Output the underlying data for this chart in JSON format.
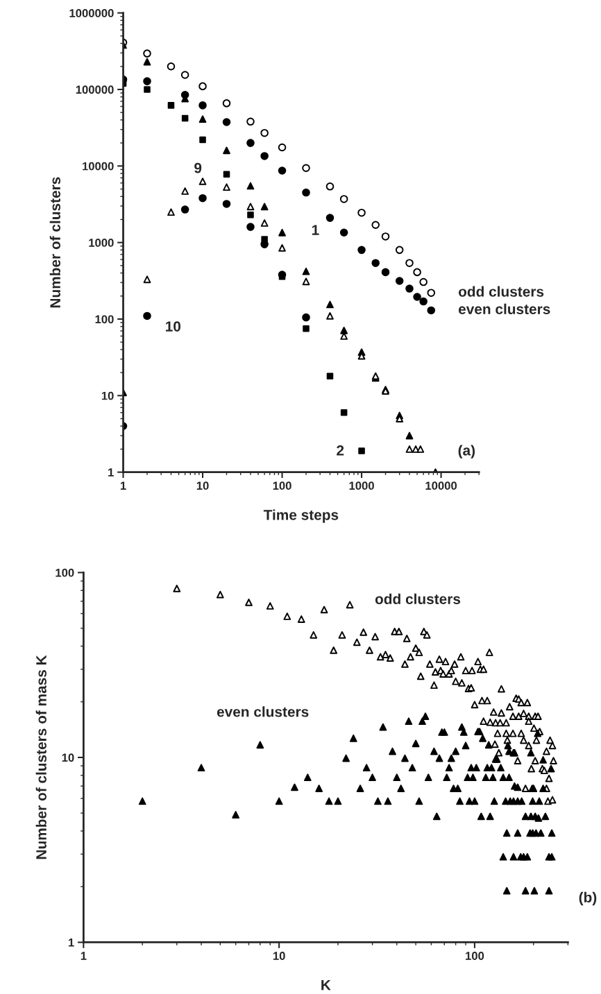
{
  "chart_data": [
    {
      "type": "scatter",
      "xlabel": "Time steps",
      "ylabel": "Number of clusters",
      "log": "xy",
      "xlim": [
        1,
        30000
      ],
      "ylim": [
        1,
        1000000
      ],
      "xticks": [
        1,
        10,
        100,
        1000,
        10000
      ],
      "yticks": [
        1,
        10,
        100,
        1000,
        10000,
        100000,
        1000000
      ],
      "grid": false,
      "legend": false,
      "annotations": [
        "(a)",
        "9",
        "10",
        "1",
        "2"
      ],
      "series": [
        {
          "name": "odd clusters",
          "color": "#ffffff",
          "marker": "circle",
          "x": [
            1,
            2,
            4,
            6,
            10,
            20,
            40,
            60,
            100,
            200,
            400,
            600,
            1000,
            1500,
            2000,
            3000,
            4000,
            5000,
            6000,
            7500
          ],
          "values": [
            410000,
            295000,
            200000,
            155000,
            110000,
            66000,
            38000,
            27000,
            17500,
            9400,
            5400,
            3700,
            2450,
            1700,
            1200,
            800,
            540,
            410,
            305,
            220
          ]
        },
        {
          "name": "even clusters",
          "color": "#000000",
          "marker": "circle",
          "x": [
            1,
            2,
            6,
            10,
            20,
            40,
            60,
            100,
            200,
            400,
            600,
            1000,
            1500,
            2000,
            3000,
            4000,
            5000,
            6000,
            7500
          ],
          "values": [
            135000,
            128000,
            85000,
            62000,
            37500,
            20000,
            13500,
            8700,
            4500,
            2100,
            1350,
            800,
            540,
            410,
            315,
            250,
            195,
            170,
            130
          ]
        },
        {
          "color": "#000000",
          "marker": "circle",
          "x": [
            1,
            2,
            6,
            10,
            20,
            40,
            60,
            100,
            200
          ],
          "values": [
            4,
            110,
            2700,
            3800,
            3200,
            1600,
            950,
            380,
            105
          ]
        },
        {
          "color": "#000000",
          "marker": "square",
          "x": [
            1,
            2,
            4,
            6,
            10,
            20,
            40,
            60,
            100,
            200,
            400,
            600,
            1000
          ],
          "values": [
            120000,
            100000,
            62000,
            42000,
            22000,
            7800,
            2300,
            1100,
            360,
            75,
            18,
            6,
            1.9
          ]
        },
        {
          "color": "#000000",
          "marker": "triangle",
          "x": [
            1,
            1,
            2,
            6,
            10,
            20,
            40,
            60,
            100,
            200,
            400,
            600,
            1000,
            1500,
            2000,
            3000,
            4000,
            8500
          ],
          "values": [
            380000,
            11,
            230000,
            76000,
            41000,
            16000,
            5500,
            2950,
            1350,
            420,
            155,
            71,
            37,
            17,
            12,
            5.5,
            3,
            1
          ]
        },
        {
          "color": "#ffffff",
          "marker": "triangle",
          "x": [
            2,
            4,
            6,
            10,
            20,
            40,
            60,
            100,
            200,
            400,
            600,
            1000,
            1500,
            2000,
            3000,
            4000,
            4800,
            5500
          ],
          "values": [
            330,
            2500,
            4700,
            6300,
            5300,
            2950,
            1800,
            850,
            310,
            110,
            60,
            33,
            18,
            11.5,
            5,
            2,
            2,
            2
          ]
        }
      ]
    },
    {
      "type": "scatter",
      "xlabel": "K",
      "ylabel": "Number of clusters of mass K",
      "log": "xy",
      "xlim": [
        1,
        300
      ],
      "ylim": [
        1,
        100
      ],
      "xticks": [
        1,
        10,
        100
      ],
      "yticks": [
        1,
        10,
        100
      ],
      "grid": false,
      "legend": false,
      "annotations": [
        "(b)"
      ],
      "series": [
        {
          "name": "odd clusters",
          "color": "#ffffff",
          "marker": "triangle",
          "x": [
            3,
            5,
            7,
            9,
            11,
            13,
            15,
            17,
            19,
            21,
            23,
            25,
            27,
            29,
            31,
            33,
            35,
            37,
            39,
            41,
            44,
            45,
            47,
            50,
            52,
            53,
            55,
            57,
            59,
            62,
            63,
            66,
            67,
            69,
            71,
            74,
            76,
            79,
            80,
            85,
            86,
            90,
            93,
            96,
            97,
            100,
            104,
            107,
            109,
            111,
            111,
            116,
            119,
            120,
            125,
            127,
            128,
            131,
            133,
            135,
            137,
            137,
            145,
            145,
            147,
            151,
            157,
            157,
            160,
            163,
            166,
            168,
            168,
            173,
            173,
            178,
            178,
            182,
            186,
            189,
            189,
            189,
            195,
            197,
            201,
            204,
            204,
            207,
            211,
            215,
            222,
            227,
            233,
            233,
            237,
            240,
            243,
            250,
            250,
            253
          ],
          "values": [
            82,
            76,
            69,
            66,
            58,
            56,
            46,
            63,
            38,
            46,
            67,
            42,
            47.6,
            38,
            45,
            35,
            36,
            34.5,
            48,
            48,
            32,
            44,
            35,
            39,
            37,
            27.5,
            48,
            46,
            32,
            24.6,
            29,
            34,
            29.5,
            28.3,
            33,
            28.3,
            29.5,
            32,
            25.8,
            35,
            25.3,
            29.5,
            23.6,
            23.8,
            29.5,
            19.3,
            33,
            30,
            20.3,
            30,
            15.7,
            20.3,
            37,
            15.5,
            17.6,
            11.8,
            15.4,
            13.5,
            10.6,
            15.4,
            23.5,
            17.4,
            15.4,
            13.5,
            12.4,
            18.8,
            16.7,
            13.5,
            10.6,
            20.9,
            9.6,
            20.7,
            16.7,
            19.8,
            13.5,
            12.4,
            17.3,
            6.8,
            19.8,
            16.7,
            15.7,
            11.6,
            8.7,
            6.8,
            14.4,
            16.7,
            9.6,
            12.4,
            16.7,
            13.8,
            8.7,
            8.5,
            10.8,
            6.8,
            5.8,
            7.7,
            12.4,
            11.6,
            5.9,
            9.6
          ]
        },
        {
          "name": "even clusters",
          "color": "#000000",
          "marker": "triangle",
          "x": [
            2,
            4,
            6,
            8,
            10,
            12,
            14,
            16,
            18,
            20,
            22,
            24,
            26,
            28,
            30,
            32,
            34,
            36,
            38,
            40,
            42,
            44,
            46,
            48,
            50,
            52,
            54,
            56,
            58,
            62,
            64,
            66,
            68,
            70,
            72,
            74,
            76,
            78,
            80,
            82,
            84,
            86,
            88,
            90,
            92,
            94,
            96,
            98,
            100,
            102,
            104,
            106,
            108,
            110,
            114,
            116,
            118,
            120,
            122,
            124,
            126,
            128,
            130,
            136,
            140,
            140,
            144,
            146,
            146,
            148,
            150,
            150,
            152,
            158,
            158,
            158,
            160,
            166,
            166,
            166,
            172,
            174,
            178,
            182,
            182,
            186,
            192,
            194,
            194,
            198,
            198,
            200,
            202,
            204,
            206,
            210,
            212,
            214,
            218,
            224,
            224,
            230,
            240,
            240,
            246,
            248,
            248
          ],
          "values": [
            5.8,
            8.8,
            4.9,
            11.7,
            5.8,
            6.9,
            7.8,
            6.8,
            5.8,
            5.8,
            9.9,
            12.7,
            6.8,
            8.8,
            7.8,
            5.8,
            14.6,
            5.8,
            10.8,
            7.8,
            6.8,
            9.9,
            15.7,
            8.8,
            11.9,
            5.8,
            15.7,
            16.7,
            7.8,
            10.8,
            4.8,
            9.9,
            13.7,
            13.7,
            7.8,
            8.8,
            9.9,
            6.8,
            10.8,
            6.8,
            5.8,
            14.6,
            13.7,
            11.6,
            7.8,
            5.8,
            8.8,
            7.8,
            5.8,
            8.8,
            13.8,
            13.8,
            4.8,
            12.7,
            7.8,
            8.8,
            11.7,
            4.8,
            8.8,
            7.8,
            5.8,
            9.8,
            9.8,
            8.8,
            7.8,
            2.9,
            5.8,
            3.9,
            1.9,
            11.6,
            7.8,
            10.8,
            5.8,
            5.8,
            10.6,
            2.9,
            7.0,
            5.8,
            6.9,
            3.9,
            2.9,
            5.8,
            2.9,
            4.8,
            1.9,
            2.9,
            3.9,
            4.8,
            10.6,
            3.9,
            5.8,
            6.8,
            1.9,
            4.8,
            3.9,
            13.5,
            4.7,
            5.8,
            3.9,
            9.7,
            6.8,
            4.8,
            1.9,
            2.9,
            8.7,
            3.9,
            2.9
          ]
        }
      ]
    }
  ]
}
